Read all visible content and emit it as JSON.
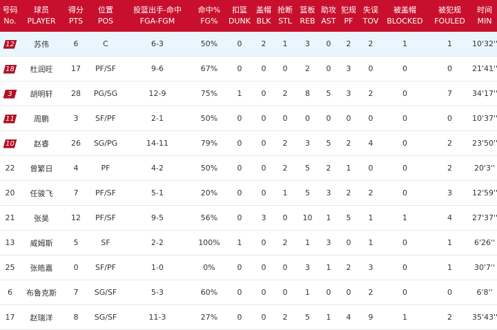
{
  "columns": [
    {
      "cn": "号码",
      "en": "No."
    },
    {
      "cn": "球员",
      "en": "PLAYER"
    },
    {
      "cn": "得分",
      "en": "PTS"
    },
    {
      "cn": "位置",
      "en": "POS"
    },
    {
      "cn": "投篮出手-命中",
      "en": "FGA-FGM"
    },
    {
      "cn": "命中%",
      "en": "FG%"
    },
    {
      "cn": "扣篮",
      "en": "DUNK"
    },
    {
      "cn": "盖帽",
      "en": "BLK"
    },
    {
      "cn": "抢断",
      "en": "STL"
    },
    {
      "cn": "篮板",
      "en": "REB"
    },
    {
      "cn": "助攻",
      "en": "AST"
    },
    {
      "cn": "犯规",
      "en": "PF"
    },
    {
      "cn": "失误",
      "en": "TOV"
    },
    {
      "cn": "被盖帽",
      "en": "BLOCKED"
    },
    {
      "cn": "被犯规",
      "en": "FOULED"
    },
    {
      "cn": "时间",
      "en": "MIN"
    }
  ],
  "rows": [
    {
      "no": "12",
      "starter": true,
      "player": "苏伟",
      "pts": "6",
      "pos": "C",
      "fga_fgm": "6-3",
      "fg_pct": "50%",
      "dunk": "0",
      "blk": "2",
      "stl": "1",
      "reb": "3",
      "ast": "0",
      "pf": "2",
      "tov": "2",
      "blocked": "1",
      "fouled": "1",
      "min": "10'32''"
    },
    {
      "no": "18",
      "starter": true,
      "player": "杜润旺",
      "pts": "17",
      "pos": "PF/SF",
      "fga_fgm": "9-6",
      "fg_pct": "67%",
      "dunk": "0",
      "blk": "0",
      "stl": "0",
      "reb": "2",
      "ast": "0",
      "pf": "3",
      "tov": "0",
      "blocked": "0",
      "fouled": "0",
      "min": "21'41''"
    },
    {
      "no": "3",
      "starter": true,
      "player": "胡明轩",
      "pts": "28",
      "pos": "PG/SG",
      "fga_fgm": "12-9",
      "fg_pct": "75%",
      "dunk": "1",
      "blk": "0",
      "stl": "2",
      "reb": "8",
      "ast": "5",
      "pf": "3",
      "tov": "2",
      "blocked": "0",
      "fouled": "7",
      "min": "34'17''"
    },
    {
      "no": "11",
      "starter": true,
      "player": "周鹏",
      "pts": "3",
      "pos": "SF/PF",
      "fga_fgm": "2-1",
      "fg_pct": "50%",
      "dunk": "0",
      "blk": "0",
      "stl": "0",
      "reb": "0",
      "ast": "0",
      "pf": "0",
      "tov": "0",
      "blocked": "0",
      "fouled": "0",
      "min": "10'37''"
    },
    {
      "no": "10",
      "starter": true,
      "player": "赵睿",
      "pts": "26",
      "pos": "SG/PG",
      "fga_fgm": "14-11",
      "fg_pct": "79%",
      "dunk": "0",
      "blk": "0",
      "stl": "2",
      "reb": "3",
      "ast": "5",
      "pf": "2",
      "tov": "4",
      "blocked": "0",
      "fouled": "2",
      "min": "23'50''"
    },
    {
      "no": "22",
      "starter": false,
      "player": "曾繁日",
      "pts": "4",
      "pos": "PF",
      "fga_fgm": "4-2",
      "fg_pct": "50%",
      "dunk": "0",
      "blk": "0",
      "stl": "2",
      "reb": "5",
      "ast": "2",
      "pf": "1",
      "tov": "0",
      "blocked": "0",
      "fouled": "2",
      "min": "20'3''"
    },
    {
      "no": "20",
      "starter": false,
      "player": "任骏飞",
      "pts": "7",
      "pos": "PF/SF",
      "fga_fgm": "5-1",
      "fg_pct": "20%",
      "dunk": "0",
      "blk": "0",
      "stl": "1",
      "reb": "5",
      "ast": "3",
      "pf": "2",
      "tov": "2",
      "blocked": "0",
      "fouled": "3",
      "min": "12'59''"
    },
    {
      "no": "21",
      "starter": false,
      "player": "张昊",
      "pts": "12",
      "pos": "PF/SF",
      "fga_fgm": "9-5",
      "fg_pct": "56%",
      "dunk": "0",
      "blk": "3",
      "stl": "0",
      "reb": "10",
      "ast": "1",
      "pf": "5",
      "tov": "1",
      "blocked": "1",
      "fouled": "4",
      "min": "27'37''"
    },
    {
      "no": "13",
      "starter": false,
      "player": "威姆斯",
      "pts": "5",
      "pos": "SF",
      "fga_fgm": "2-2",
      "fg_pct": "100%",
      "dunk": "1",
      "blk": "0",
      "stl": "2",
      "reb": "1",
      "ast": "3",
      "pf": "0",
      "tov": "1",
      "blocked": "0",
      "fouled": "1",
      "min": "6'26''"
    },
    {
      "no": "25",
      "starter": false,
      "player": "张皓嘉",
      "pts": "0",
      "pos": "SF/PF",
      "fga_fgm": "1-0",
      "fg_pct": "0%",
      "dunk": "0",
      "blk": "0",
      "stl": "0",
      "reb": "3",
      "ast": "1",
      "pf": "2",
      "tov": "3",
      "blocked": "0",
      "fouled": "1",
      "min": "30'7''"
    },
    {
      "no": "6",
      "starter": false,
      "player": "布鲁克斯",
      "pts": "7",
      "pos": "SG/SF",
      "fga_fgm": "5-3",
      "fg_pct": "60%",
      "dunk": "0",
      "blk": "0",
      "stl": "0",
      "reb": "1",
      "ast": "0",
      "pf": "0",
      "tov": "2",
      "blocked": "0",
      "fouled": "0",
      "min": "6'8''"
    },
    {
      "no": "17",
      "starter": false,
      "player": "赵瑞洋",
      "pts": "8",
      "pos": "SG/SF",
      "fga_fgm": "11-3",
      "fg_pct": "27%",
      "dunk": "0",
      "blk": "0",
      "stl": "2",
      "reb": "5",
      "ast": "1",
      "pf": "4",
      "tov": "9",
      "blocked": "1",
      "fouled": "2",
      "min": "35'43''"
    }
  ],
  "highlighted_row": 0,
  "colors": {
    "header_bg": "#c8102e",
    "badge_bg": "#b01226",
    "highlight_bg": "#eaf6fd"
  }
}
